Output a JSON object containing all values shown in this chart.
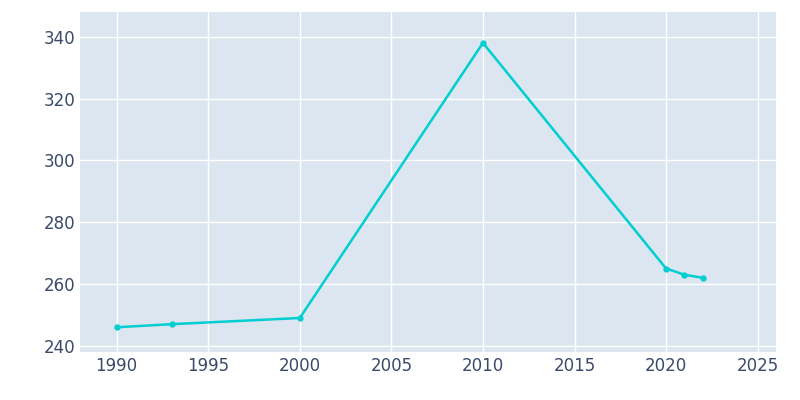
{
  "years": [
    1990,
    1993,
    2000,
    2010,
    2020,
    2021,
    2022
  ],
  "population": [
    246,
    247,
    249,
    338,
    265,
    263,
    262
  ],
  "line_color": "#00CED1",
  "fig_bg_color": "#ffffff",
  "plot_bg_color": "#dce6f0",
  "grid_color": "#ffffff",
  "tick_color": "#3a4a6a",
  "xlim": [
    1988,
    2026
  ],
  "ylim": [
    238,
    348
  ],
  "xticks": [
    1990,
    1995,
    2000,
    2005,
    2010,
    2015,
    2020,
    2025
  ],
  "yticks": [
    240,
    260,
    280,
    300,
    320,
    340
  ],
  "linewidth": 1.8,
  "marker": "o",
  "markersize": 3.5,
  "tick_labelsize": 12
}
